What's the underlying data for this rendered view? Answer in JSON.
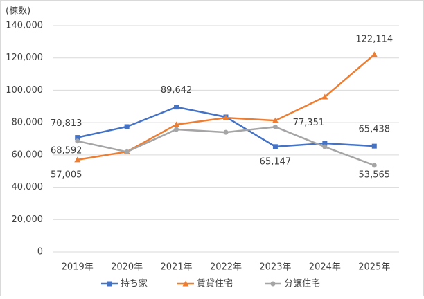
{
  "chart_data": {
    "type": "line",
    "y_label": "(棟数)",
    "categories": [
      "2019年",
      "2020年",
      "2021年",
      "2022年",
      "2023年",
      "2024年",
      "2025年"
    ],
    "series": [
      {
        "name": "持ち家",
        "color": "#4472c4",
        "marker": "square",
        "values": [
          70813,
          77500,
          89642,
          83500,
          65147,
          67200,
          65438
        ],
        "value_labels": [
          "70,813",
          null,
          "89,642",
          null,
          "65,147",
          null,
          "65,438"
        ]
      },
      {
        "name": "賃貸住宅",
        "color": "#ed7d31",
        "marker": "triangle",
        "values": [
          57005,
          62000,
          78800,
          83000,
          81300,
          95900,
          122114
        ],
        "value_labels": [
          "57,005",
          null,
          null,
          null,
          null,
          null,
          "122,114"
        ]
      },
      {
        "name": "分譲住宅",
        "color": "#a5a5a5",
        "marker": "circle",
        "values": [
          68592,
          61900,
          75800,
          74000,
          77351,
          65000,
          53565
        ],
        "value_labels": [
          "68,592",
          null,
          null,
          null,
          "77,351",
          null,
          "53,565"
        ]
      }
    ],
    "ylim": [
      0,
      140000
    ],
    "yticks": [
      0,
      {
        "value": 20000,
        "label": "20,000"
      },
      {
        "value": 40000,
        "label": "40,000"
      },
      {
        "value": 60000,
        "label": "60,000"
      },
      {
        "value": 80000,
        "label": "80,000"
      },
      {
        "value": 100000,
        "label": "100,000"
      },
      {
        "value": 120000,
        "label": "120,000"
      },
      {
        "value": 140000,
        "label": "140,000"
      }
    ],
    "grid": true,
    "legend": "bottom"
  }
}
